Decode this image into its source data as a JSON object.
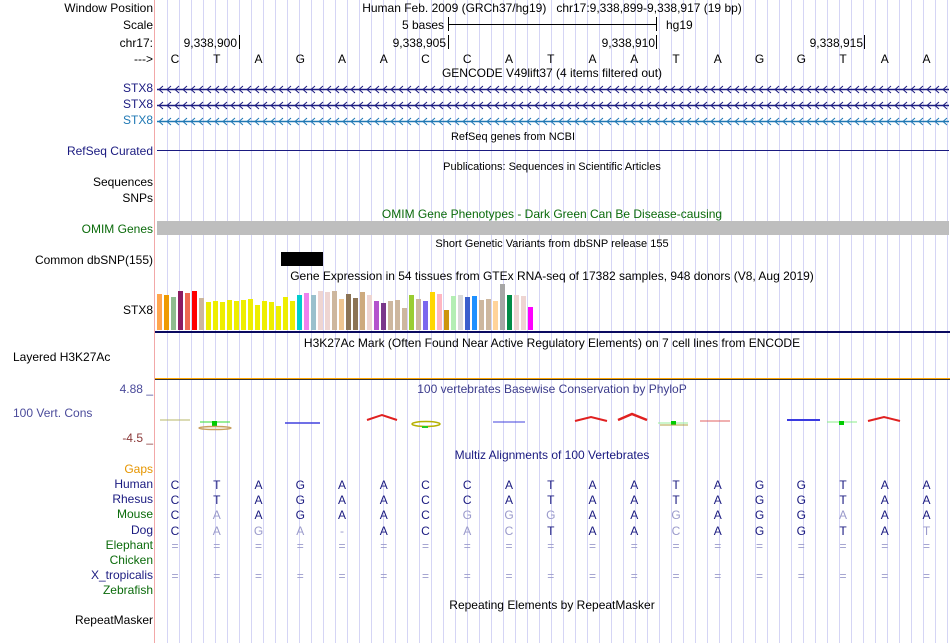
{
  "header": {
    "window_position_label": "Window Position",
    "window_position_value": "Human Feb. 2009 (GRCh37/hg19)   chr17:9,338,899-9,338,917 (19 bp)",
    "scale_label": "Scale",
    "scale_text": "5 bases",
    "scale_assembly": "hg19",
    "chrom_label": "chr17:",
    "strand_label": "--->",
    "positions": [
      "9,338,900",
      "9,338,905",
      "9,338,910",
      "9,338,915"
    ],
    "bases": [
      "C",
      "T",
      "A",
      "G",
      "A",
      "A",
      "C",
      "C",
      "A",
      "T",
      "A",
      "A",
      "T",
      "A",
      "G",
      "G",
      "T",
      "A",
      "A"
    ]
  },
  "tracks": {
    "gencode": {
      "title": "GENCODE V49lift37 (4 items filtered out)",
      "items": [
        {
          "label": "STX8",
          "color": "#1a1a80"
        },
        {
          "label": "STX8",
          "color": "#1a1a80"
        },
        {
          "label": "STX8",
          "color": "#1f78b4"
        }
      ]
    },
    "refseq": {
      "title": "RefSeq genes from NCBI",
      "label": "RefSeq Curated",
      "color": "#1a1a80"
    },
    "publications": {
      "title": "Publications: Sequences in Scientific Articles",
      "label_1": "Sequences",
      "label_2": "SNPs"
    },
    "omim": {
      "title": "OMIM Gene Phenotypes - Dark Green Can Be Disease-causing",
      "label": "OMIM Genes",
      "color": "#0b6b0b",
      "bar_color": "#bebebe"
    },
    "dbsnp": {
      "title": "Short Genetic Variants from dbSNP release 155",
      "label": "Common dbSNP(155)"
    },
    "gtex": {
      "title": "Gene Expression in 54 tissues from GTEx RNA-seq of 17382 samples, 948 donors (V8, Aug 2019)",
      "label": "STX8",
      "relative_expression": [
        0.79,
        0.75,
        0.71,
        0.85,
        0.8,
        0.85,
        0.7,
        0.61,
        0.63,
        0.61,
        0.66,
        0.63,
        0.66,
        0.68,
        0.55,
        0.63,
        0.61,
        0.53,
        0.72,
        0.63,
        0.76,
        0.8,
        0.77,
        0.85,
        0.82,
        0.85,
        0.68,
        0.79,
        0.7,
        0.82,
        0.77,
        0.64,
        0.59,
        0.62,
        0.66,
        0.47,
        0.75,
        0.68,
        0.62,
        0.82,
        0.78,
        0.44,
        0.74,
        0.77,
        0.72,
        0.73,
        0.66,
        0.68,
        0.64,
        1.0,
        0.76,
        0.77,
        0.73,
        0.5
      ],
      "colors": [
        "#ffa54f",
        "#ee9a00",
        "#8fbc8f",
        "#8b1c62",
        "#ee6a50",
        "#ff0000",
        "#cdb79e",
        "#eeee00",
        "#eeee00",
        "#eeee00",
        "#eeee00",
        "#eeee00",
        "#eeee00",
        "#eeee00",
        "#eeee00",
        "#eeee00",
        "#eeee00",
        "#eeee00",
        "#eeee00",
        "#eeee00",
        "#00cdcd",
        "#ee82ee",
        "#9ac0cd",
        "#eed5d2",
        "#eed5d2",
        "#cdb79e",
        "#eec591",
        "#8b7355",
        "#8b7355",
        "#cdaa7d",
        "#eed5d2",
        "#b452cd",
        "#7a378b",
        "#cdb79e",
        "#cdb79e",
        "#cdb79e",
        "#9acd32",
        "#cdb79e",
        "#7b68ee",
        "#ffd700",
        "#ffb6c1",
        "#cd950c",
        "#b4eeb4",
        "#d9d9d9",
        "#3a5fcd",
        "#1e90ff",
        "#cdb79e",
        "#cdb79e",
        "#ffd39b",
        "#a6a6a6",
        "#008b45",
        "#eed5d2",
        "#eed5d2",
        "#ff00ff"
      ]
    },
    "h3k27ac": {
      "title": "H3K27Ac Mark (Often Found Near Active Regulatory Elements) on 7 cell lines from ENCODE",
      "label": "Layered H3K27Ac"
    },
    "phylop": {
      "title": "100 vertebrates Basewise Conservation by PhyloP",
      "label": "100 Vert. Cons",
      "max_label": "4.88 _",
      "min_label": "-4.5 _",
      "label_color": "#4b4b9b",
      "min_color": "#8b3a3a"
    },
    "multiz": {
      "title": "Multiz Alignments of 100 Vertebrates",
      "gaps_label": "Gaps",
      "species": [
        {
          "name": "Human",
          "color": "#1a1a80",
          "seq": [
            "C",
            "T",
            "A",
            "G",
            "A",
            "A",
            "C",
            "C",
            "A",
            "T",
            "A",
            "A",
            "T",
            "A",
            "G",
            "G",
            "T",
            "A",
            "A"
          ],
          "faded": []
        },
        {
          "name": "Rhesus",
          "color": "#1a1a80",
          "seq": [
            "C",
            "T",
            "A",
            "G",
            "A",
            "A",
            "C",
            "C",
            "A",
            "T",
            "A",
            "A",
            "T",
            "A",
            "G",
            "G",
            "T",
            "A",
            "A"
          ],
          "faded": []
        },
        {
          "name": "Mouse",
          "color": "#0b6b0b",
          "seq": [
            "C",
            "A",
            "A",
            "G",
            "A",
            "A",
            "C",
            "G",
            "G",
            "G",
            "A",
            "A",
            "G",
            "A",
            "G",
            "G",
            "A",
            "A",
            "A"
          ],
          "faded": [
            1,
            7,
            8,
            9,
            12,
            16
          ]
        },
        {
          "name": "Dog",
          "color": "#1a1a80",
          "seq": [
            "C",
            "A",
            "G",
            "A",
            "-",
            "A",
            "C",
            "A",
            "C",
            "T",
            "A",
            "A",
            "C",
            "A",
            "G",
            "G",
            "T",
            "A",
            "T"
          ],
          "faded": [
            1,
            2,
            3,
            4,
            7,
            8,
            12,
            18
          ]
        },
        {
          "name": "Elephant",
          "color": "#0b6b0b",
          "seq": [
            "=",
            "=",
            "=",
            "=",
            "=",
            "=",
            "=",
            "=",
            "=",
            "=",
            "=",
            "=",
            "=",
            "=",
            "=",
            "=",
            "=",
            "=",
            "="
          ],
          "faded": "all"
        },
        {
          "name": "Chicken",
          "color": "#0b6b0b",
          "seq": [],
          "faded": []
        },
        {
          "name": "X_tropicalis",
          "color": "#1a1a80",
          "seq": [
            "=",
            "=",
            "=",
            "=",
            "=",
            "=",
            "=",
            "=",
            "=",
            "=",
            "=",
            "=",
            "=",
            "=",
            "=",
            "=",
            "=",
            "=",
            "="
          ],
          "faded": "all"
        },
        {
          "name": "Zebrafish",
          "color": "#0b6b0b",
          "seq": [],
          "faded": []
        }
      ]
    },
    "repeatmasker": {
      "title": "Repeating Elements by RepeatMasker",
      "label": "RepeatMasker"
    }
  }
}
